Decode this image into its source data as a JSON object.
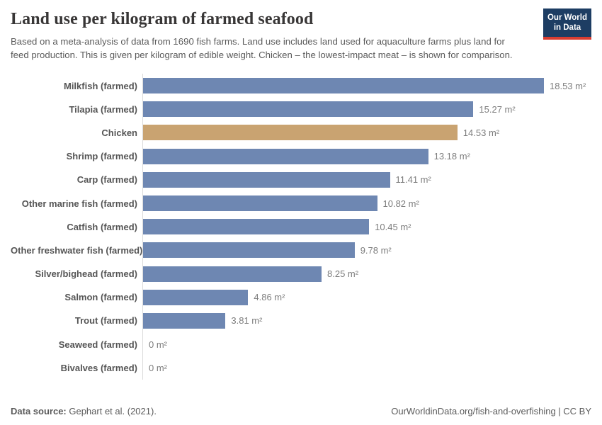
{
  "header": {
    "title": "Land use per kilogram of farmed seafood",
    "subtitle": "Based on a meta-analysis of data from 1690 fish farms. Land use includes land used for aquaculture farms plus land for feed production. This is given per kilogram of edible weight. Chicken – the lowest-impact meat – is shown for comparison.",
    "logo": {
      "line1": "Our World",
      "line2": "in Data",
      "bg_color": "#1d3d63",
      "accent_color": "#d93d31"
    }
  },
  "chart_data": {
    "type": "bar",
    "orientation": "horizontal",
    "title": "Land use per kilogram of farmed seafood",
    "unit": "m²",
    "categories": [
      "Milkfish (farmed)",
      "Tilapia (farmed)",
      "Chicken",
      "Shrimp (farmed)",
      "Carp (farmed)",
      "Other marine fish (farmed)",
      "Catfish (farmed)",
      "Other freshwater fish (farmed)",
      "Silver/bighead (farmed)",
      "Salmon (farmed)",
      "Trout (farmed)",
      "Seaweed (farmed)",
      "Bivalves (farmed)"
    ],
    "values": [
      18.53,
      15.27,
      14.53,
      13.18,
      11.41,
      10.82,
      10.45,
      9.78,
      8.25,
      4.86,
      3.81,
      0,
      0
    ],
    "value_labels": [
      "18.53 m²",
      "15.27 m²",
      "14.53 m²",
      "13.18 m²",
      "11.41 m²",
      "10.82 m²",
      "10.45 m²",
      "9.78 m²",
      "8.25 m²",
      "4.86 m²",
      "3.81 m²",
      "0 m²",
      "0 m²"
    ],
    "xlim": [
      0,
      18.53
    ],
    "grid": false,
    "legend": "none",
    "bar_color": "#6e87b2",
    "highlight_category": "Chicken",
    "highlight_color": "#c9a371",
    "axis_line_color": "#dcdcdc"
  },
  "footer": {
    "source_label": "Data source:",
    "source_text": " Gephart et al. (2021).",
    "right_text": "OurWorldinData.org/fish-and-overfishing | CC BY"
  }
}
